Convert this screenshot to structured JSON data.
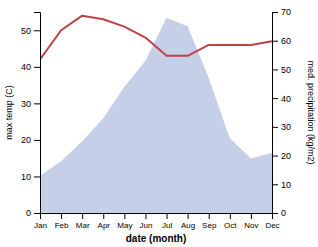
{
  "chart_data": {
    "type": "line",
    "x_label": "date (month)",
    "y_label": "max temp (C)",
    "y2_label": "med. precipitation (kg/m2)",
    "categories": [
      "Jan",
      "Feb",
      "Mar",
      "Apr",
      "May",
      "Jun",
      "Jul",
      "Aug",
      "Sep",
      "Oct",
      "Nov",
      "Dec"
    ],
    "series": [
      {
        "type": "area",
        "axis": "y2",
        "color": "#c5cfe8",
        "values": [
          13,
          18,
          25,
          33,
          44,
          53,
          68,
          65,
          47,
          26,
          19,
          21
        ]
      },
      {
        "type": "line",
        "color": "#c0414a",
        "values": [
          42,
          50,
          54,
          53,
          51,
          48,
          43,
          43,
          46,
          46,
          46,
          47
        ]
      }
    ],
    "ylim": [
      0,
      55
    ],
    "yticks": [
      0,
      10,
      20,
      30,
      40,
      50
    ],
    "y2lim": [
      0,
      70
    ],
    "y2ticks": [
      0,
      10,
      20,
      30,
      40,
      50,
      60,
      70
    ]
  }
}
